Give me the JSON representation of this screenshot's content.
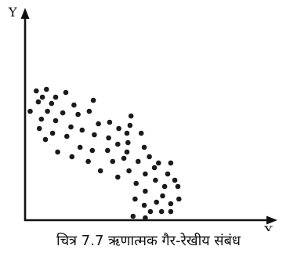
{
  "caption": "चित्र 7.7 ऋणात्मक गैर-रेखीय संबंध",
  "chart_data": {
    "type": "scatter",
    "title": "चित्र 7.7 ऋणात्मक गैर-रेखीय संबंध",
    "xlabel": "X",
    "ylabel": "Y",
    "grid": false,
    "colors": {
      "axes": "#111111",
      "points": "#1a1a1a"
    },
    "points": [
      {
        "x": 1.1,
        "y": 8.3
      },
      {
        "x": 2.1,
        "y": 8.4
      },
      {
        "x": 4.0,
        "y": 8.2
      },
      {
        "x": 1.7,
        "y": 7.9
      },
      {
        "x": 3.0,
        "y": 7.9
      },
      {
        "x": 6.7,
        "y": 7.7
      },
      {
        "x": 1.3,
        "y": 7.6
      },
      {
        "x": 2.6,
        "y": 7.5
      },
      {
        "x": 4.8,
        "y": 7.4
      },
      {
        "x": 6.3,
        "y": 7.0
      },
      {
        "x": 0.5,
        "y": 7.0
      },
      {
        "x": 2.2,
        "y": 7.0
      },
      {
        "x": 3.7,
        "y": 6.9
      },
      {
        "x": 5.2,
        "y": 6.8
      },
      {
        "x": 10.4,
        "y": 6.7
      },
      {
        "x": 1.6,
        "y": 6.5
      },
      {
        "x": 3.0,
        "y": 6.4
      },
      {
        "x": 8.3,
        "y": 6.3
      },
      {
        "x": 10.3,
        "y": 6.1
      },
      {
        "x": 7.2,
        "y": 6.2
      },
      {
        "x": 4.5,
        "y": 6.0
      },
      {
        "x": 1.4,
        "y": 5.9
      },
      {
        "x": 9.2,
        "y": 5.9
      },
      {
        "x": 5.6,
        "y": 5.8
      },
      {
        "x": 10.0,
        "y": 5.6
      },
      {
        "x": 2.7,
        "y": 5.6
      },
      {
        "x": 11.4,
        "y": 5.6
      },
      {
        "x": 6.8,
        "y": 5.5
      },
      {
        "x": 4.1,
        "y": 5.4
      },
      {
        "x": 8.2,
        "y": 5.3
      },
      {
        "x": 2.0,
        "y": 5.2
      },
      {
        "x": 10.1,
        "y": 5.0
      },
      {
        "x": 9.1,
        "y": 4.9
      },
      {
        "x": 11.7,
        "y": 4.7
      },
      {
        "x": 5.4,
        "y": 4.7
      },
      {
        "x": 6.6,
        "y": 4.5
      },
      {
        "x": 8.1,
        "y": 4.5
      },
      {
        "x": 3.2,
        "y": 4.4
      },
      {
        "x": 10.0,
        "y": 4.4
      },
      {
        "x": 12.2,
        "y": 4.1
      },
      {
        "x": 4.6,
        "y": 4.1
      },
      {
        "x": 9.7,
        "y": 4.0
      },
      {
        "x": 6.2,
        "y": 3.8
      },
      {
        "x": 11.1,
        "y": 3.8
      },
      {
        "x": 8.6,
        "y": 3.8
      },
      {
        "x": 13.1,
        "y": 3.7
      },
      {
        "x": 14.3,
        "y": 3.7
      },
      {
        "x": 12.7,
        "y": 3.4
      },
      {
        "x": 7.4,
        "y": 3.2
      },
      {
        "x": 10.2,
        "y": 3.2
      },
      {
        "x": 11.8,
        "y": 3.0
      },
      {
        "x": 14.0,
        "y": 3.0
      },
      {
        "x": 9.1,
        "y": 2.8
      },
      {
        "x": 12.8,
        "y": 2.6
      },
      {
        "x": 14.7,
        "y": 2.6
      },
      {
        "x": 10.9,
        "y": 2.4
      },
      {
        "x": 13.7,
        "y": 2.2
      },
      {
        "x": 15.0,
        "y": 2.2
      },
      {
        "x": 11.8,
        "y": 1.9
      },
      {
        "x": 13.5,
        "y": 1.6
      },
      {
        "x": 10.8,
        "y": 1.4
      },
      {
        "x": 15.1,
        "y": 1.4
      },
      {
        "x": 12.9,
        "y": 1.2
      },
      {
        "x": 14.3,
        "y": 1.1
      },
      {
        "x": 11.7,
        "y": 1.0
      },
      {
        "x": 12.3,
        "y": 0.6
      },
      {
        "x": 13.4,
        "y": 0.6
      },
      {
        "x": 14.3,
        "y": 0.6
      },
      {
        "x": 10.6,
        "y": 0.3
      },
      {
        "x": 11.8,
        "y": 0.2
      }
    ]
  }
}
